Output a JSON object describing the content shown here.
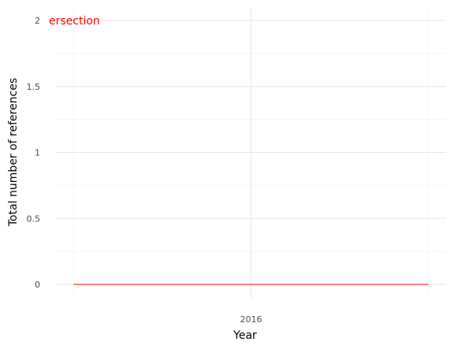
{
  "chart_data": {
    "type": "line",
    "title": "",
    "xlabel": "Year",
    "ylabel": "Total number of references",
    "x_ticks": [
      "2016"
    ],
    "y_ticks": [
      "0",
      "0.5",
      "1",
      "1.5",
      "2"
    ],
    "ylim": [
      0,
      2
    ],
    "grid": true,
    "legend": "none",
    "annotation": "ersection",
    "series": [
      {
        "color": "#ff0000",
        "points": [
          [
            2015.5,
            0
          ],
          [
            2016.5,
            0
          ]
        ]
      }
    ]
  }
}
